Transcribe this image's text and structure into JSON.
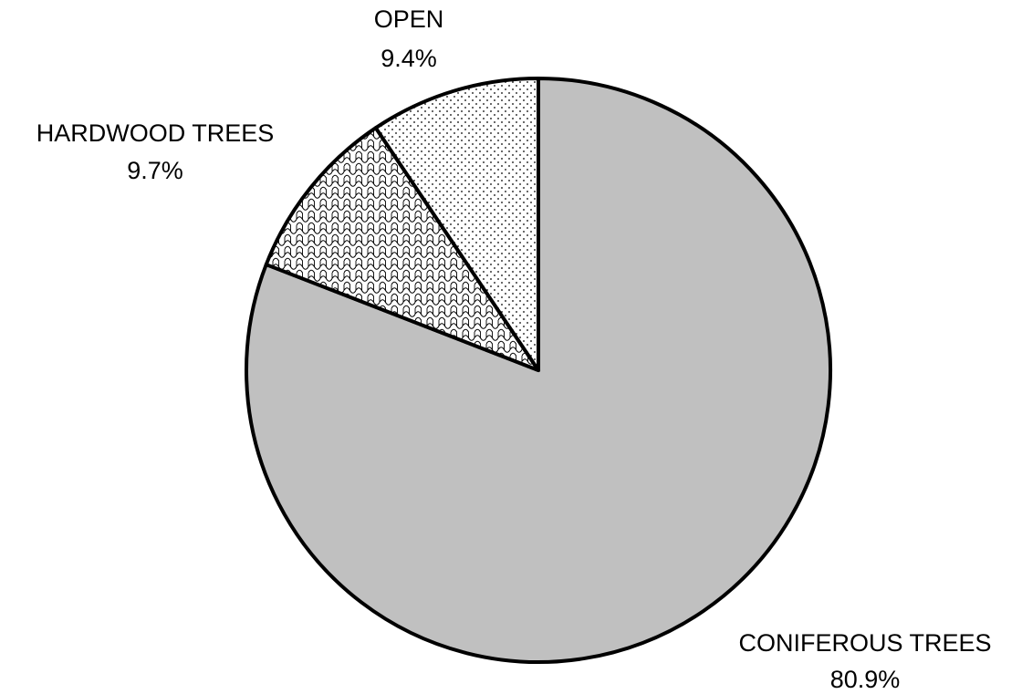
{
  "chart_data": {
    "type": "pie",
    "title": "",
    "start_angle_deg": 0,
    "direction": "clockwise",
    "slices": [
      {
        "name": "CONIFEROUS TREES",
        "value": 80.9,
        "value_label": "80.9%",
        "fill": "#c0c0c0",
        "pattern": "solid"
      },
      {
        "name": "HARDWOOD TREES",
        "value": 9.7,
        "value_label": "9.7%",
        "fill": "#ffffff",
        "pattern": "crosshatch"
      },
      {
        "name": "OPEN",
        "value": 9.4,
        "value_label": "9.4%",
        "fill": "#ffffff",
        "pattern": "dots"
      }
    ],
    "outline_color": "#000000"
  }
}
